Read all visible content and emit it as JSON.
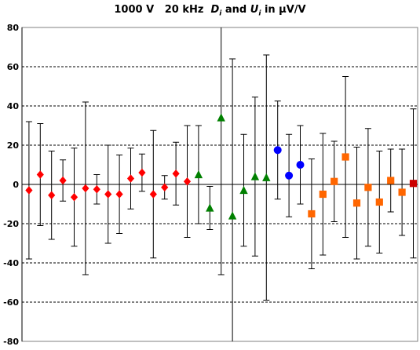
{
  "chart_data": {
    "type": "scatter",
    "title": {
      "prefix": "1000 V   20 kHz  ",
      "d_letter": "D",
      "d_sub": "i",
      "and": " and ",
      "u_letter": "U",
      "u_sub": "i",
      "suffix": " in µV/V"
    },
    "xlabel": "",
    "ylabel": "",
    "ylim": [
      -80,
      80
    ],
    "yticks": [
      80,
      60,
      40,
      20,
      0,
      -20,
      -40,
      -60,
      -80
    ],
    "grid": "horizontal-dashed",
    "legend": "none",
    "series": [
      {
        "marker": "diamond",
        "color": "#ff0000",
        "points": [
          {
            "x": 1,
            "y": -3,
            "u": 35
          },
          {
            "x": 2,
            "y": 5,
            "u": 26
          },
          {
            "x": 3,
            "y": -5.5,
            "u": 22.5
          },
          {
            "x": 4,
            "y": 2,
            "u": 10.5
          },
          {
            "x": 5,
            "y": -6.5,
            "u": 25
          },
          {
            "x": 6,
            "y": -2,
            "u": 44
          },
          {
            "x": 7,
            "y": -2.5,
            "u": 7.5
          },
          {
            "x": 8,
            "y": -5,
            "u": 25
          },
          {
            "x": 9,
            "y": -5,
            "u": 20
          },
          {
            "x": 10,
            "y": 3,
            "u": 15.5
          },
          {
            "x": 11,
            "y": 6,
            "u": 9.5
          },
          {
            "x": 12,
            "y": -5,
            "u": 32.5
          },
          {
            "x": 13,
            "y": -1.5,
            "u": 6
          },
          {
            "x": 14,
            "y": 5.5,
            "u": 16
          },
          {
            "x": 15,
            "y": 1.5,
            "u": 28.5
          }
        ]
      },
      {
        "marker": "triangle",
        "color": "#008000",
        "points": [
          {
            "x": 16,
            "y": 5,
            "u": 25
          },
          {
            "x": 17,
            "y": -12,
            "u": 11
          },
          {
            "x": 18,
            "y": 34,
            "u": 80
          },
          {
            "x": 19,
            "y": -16,
            "u": 80
          },
          {
            "x": 20,
            "y": -3,
            "u": 28.5
          },
          {
            "x": 21,
            "y": 4,
            "u": 40.5
          },
          {
            "x": 22,
            "y": 3.5,
            "u": 62.5
          }
        ]
      },
      {
        "marker": "circle",
        "color": "#0000ff",
        "points": [
          {
            "x": 23,
            "y": 17.5,
            "u": 25
          },
          {
            "x": 24,
            "y": 4.5,
            "u": 21
          },
          {
            "x": 25,
            "y": 10,
            "u": 20
          }
        ]
      },
      {
        "marker": "square",
        "color": "#ff6600",
        "points": [
          {
            "x": 26,
            "y": -15,
            "u": 28
          },
          {
            "x": 27,
            "y": -5,
            "u": 31
          },
          {
            "x": 28,
            "y": 1.5,
            "u": 20.5
          },
          {
            "x": 29,
            "y": 14,
            "u": 41
          },
          {
            "x": 30,
            "y": -9.5,
            "u": 28.5
          },
          {
            "x": 31,
            "y": -1.5,
            "u": 30
          },
          {
            "x": 32,
            "y": -9,
            "u": 26
          },
          {
            "x": 33,
            "y": 2,
            "u": 16
          },
          {
            "x": 34,
            "y": -4,
            "u": 22
          }
        ]
      },
      {
        "marker": "square",
        "color": "#cc0000",
        "points": [
          {
            "x": 35,
            "y": 0.5,
            "u": 38
          }
        ]
      }
    ]
  }
}
